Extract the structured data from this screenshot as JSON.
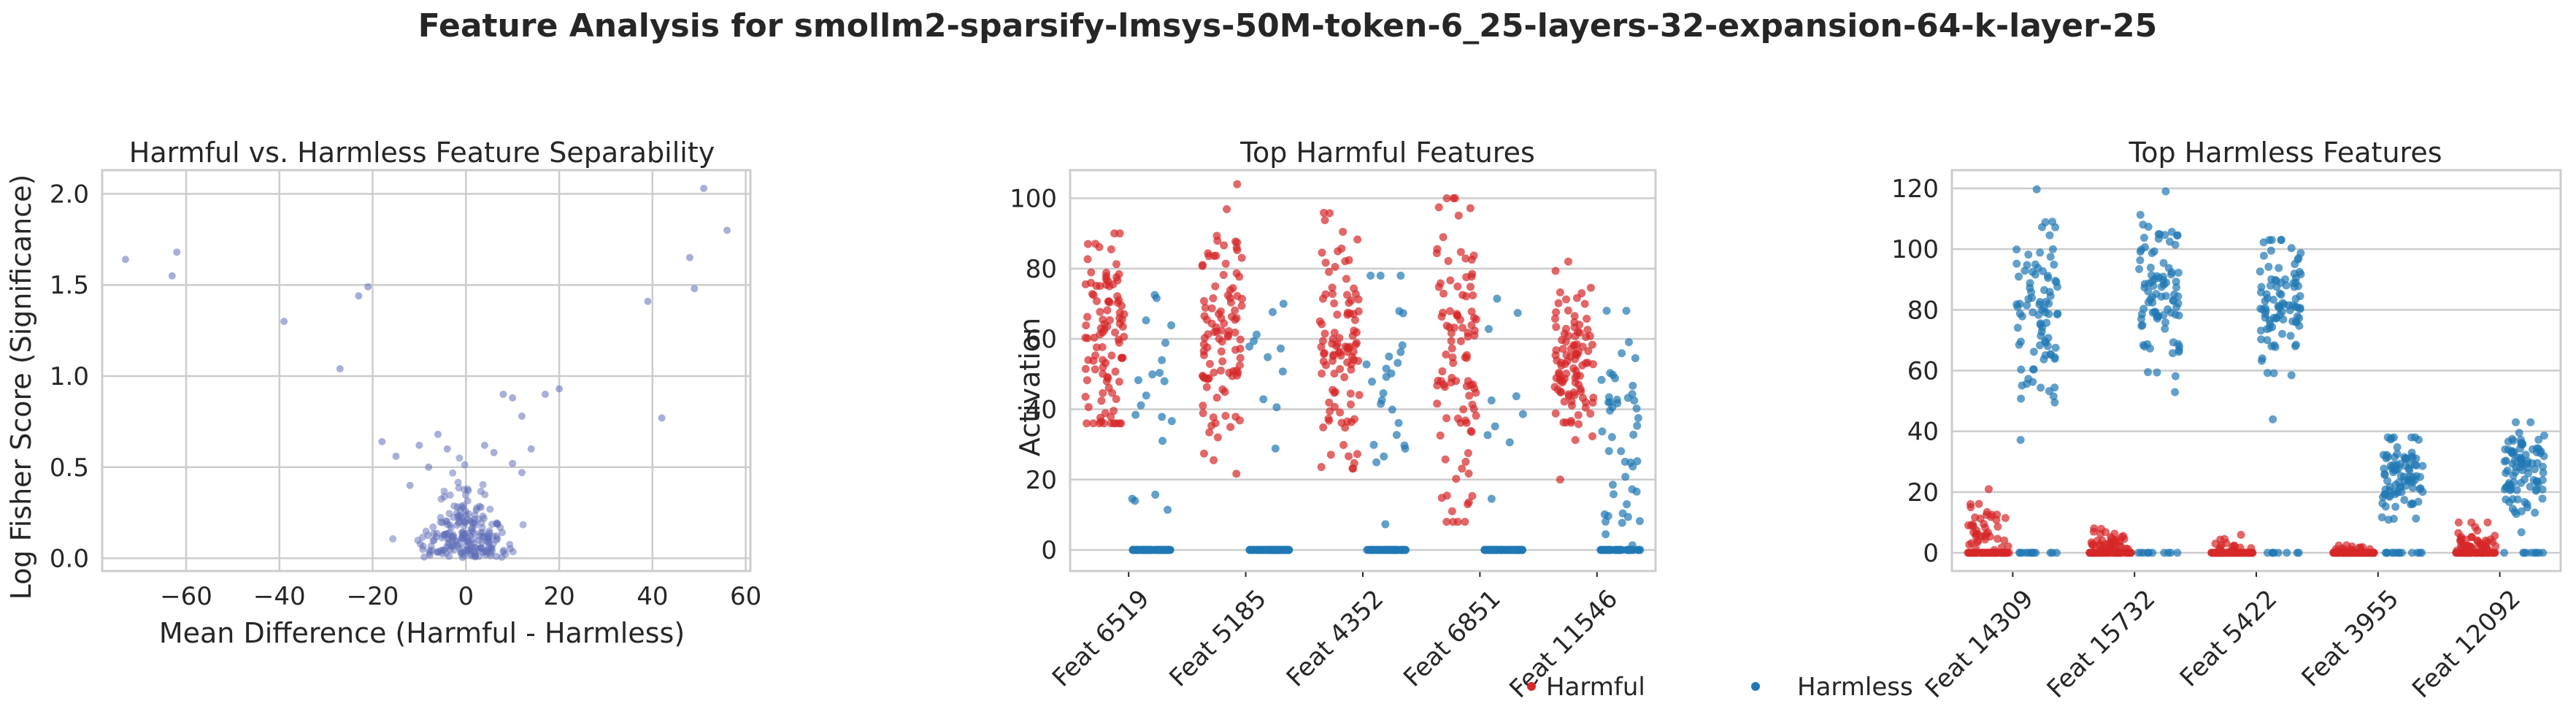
{
  "figure": {
    "title": "Feature Analysis for smollm2-sparsify-lmsys-50M-token-6_25-layers-32-expansion-64-k-layer-25"
  },
  "colors": {
    "harmful": "#d62728",
    "harmless": "#1f77b4",
    "scatter": "#5f6db8",
    "grid": "#cccccc",
    "text": "#262626"
  },
  "legend": {
    "placement": "bottom-center",
    "items": [
      "Harmful",
      "Harmless"
    ]
  },
  "chart_data": [
    {
      "type": "scatter",
      "title": "Harmful vs. Harmless Feature Separability",
      "xlabel": "Mean Difference (Harmful - Harmless)",
      "ylabel": "Log Fisher Score (Significance)",
      "xlim": [
        -78,
        61
      ],
      "ylim": [
        -0.07,
        2.13
      ],
      "xticks": [
        -60,
        -40,
        -20,
        0,
        20,
        40,
        60
      ],
      "yticks": [
        0.0,
        0.5,
        1.0,
        1.5,
        2.0
      ],
      "xtick_labels": [
        "−60",
        "−40",
        "−20",
        "0",
        "20",
        "40",
        "60"
      ],
      "ytick_labels": [
        "0.0",
        "0.5",
        "1.0",
        "1.5",
        "2.0"
      ],
      "grid": true,
      "points": [
        [
          -73,
          1.64
        ],
        [
          -63,
          1.55
        ],
        [
          -62,
          1.68
        ],
        [
          -39,
          1.3
        ],
        [
          -27,
          1.04
        ],
        [
          -23,
          1.44
        ],
        [
          -21,
          1.49
        ],
        [
          51,
          2.03
        ],
        [
          56,
          1.8
        ],
        [
          48,
          1.65
        ],
        [
          49,
          1.48
        ],
        [
          39,
          1.41
        ],
        [
          42,
          0.77
        ],
        [
          20,
          0.93
        ],
        [
          17,
          0.9
        ],
        [
          12,
          0.78
        ],
        [
          8,
          0.9
        ],
        [
          10,
          0.88
        ],
        [
          14,
          0.6
        ],
        [
          12,
          0.47
        ],
        [
          10,
          0.52
        ],
        [
          -18,
          0.64
        ],
        [
          -15,
          0.56
        ],
        [
          -12,
          0.4
        ],
        [
          -10,
          0.62
        ],
        [
          -6,
          0.68
        ],
        [
          -8,
          0.5
        ],
        [
          -4,
          0.6
        ],
        [
          4,
          0.62
        ],
        [
          6,
          0.58
        ]
      ],
      "cluster": {
        "x_spread": 5,
        "y_max": 0.55,
        "count": 220
      }
    },
    {
      "type": "strip",
      "title": "Top Harmful Features",
      "xlabel": "",
      "ylabel": "Activation",
      "categories": [
        "Feat 6519",
        "Feat 5185",
        "Feat 4352",
        "Feat 6851",
        "Feat 11546"
      ],
      "ylim": [
        -6,
        108
      ],
      "yticks": [
        0,
        20,
        40,
        60,
        80,
        100
      ],
      "grid": true,
      "series": [
        {
          "name": "Harmful",
          "means": [
            58,
            60,
            55,
            55,
            52
          ],
          "spreads": [
            14,
            18,
            16,
            22,
            12
          ],
          "mins": [
            36,
            12,
            14,
            8,
            20
          ],
          "maxs": [
            90,
            104,
            96,
            100,
            82
          ],
          "zero_fraction": [
            0,
            0,
            0,
            0,
            0
          ]
        },
        {
          "name": "Harmless",
          "means": [
            40,
            50,
            45,
            45,
            30
          ],
          "spreads": [
            18,
            12,
            18,
            16,
            18
          ],
          "mins": [
            0,
            0,
            0,
            0,
            0
          ],
          "maxs": [
            75,
            70,
            78,
            73,
            68
          ],
          "zero_fraction": [
            0.8,
            0.85,
            0.8,
            0.9,
            0.55
          ]
        }
      ]
    },
    {
      "type": "strip",
      "title": "Top Harmless Features",
      "xlabel": "",
      "ylabel": "",
      "categories": [
        "Feat 14309",
        "Feat 15732",
        "Feat 5422",
        "Feat 3955",
        "Feat 12092"
      ],
      "ylim": [
        -6,
        126
      ],
      "yticks": [
        0,
        20,
        40,
        60,
        80,
        100,
        120
      ],
      "grid": true,
      "series": [
        {
          "name": "Harmful",
          "means": [
            6,
            3,
            2,
            1,
            3
          ],
          "spreads": [
            6,
            3,
            2,
            1,
            3
          ],
          "mins": [
            0,
            0,
            0,
            0,
            0
          ],
          "maxs": [
            25,
            10,
            8,
            5,
            10
          ],
          "zero_fraction": [
            0.45,
            0.5,
            0.7,
            0.8,
            0.5
          ]
        },
        {
          "name": "Harmless",
          "means": [
            78,
            85,
            80,
            25,
            28
          ],
          "spreads": [
            18,
            12,
            12,
            7,
            8
          ],
          "mins": [
            0,
            0,
            0,
            0,
            0
          ],
          "maxs": [
            120,
            119,
            103,
            38,
            43
          ],
          "zero_fraction": [
            0.08,
            0.04,
            0.05,
            0.1,
            0.1
          ]
        }
      ]
    }
  ]
}
